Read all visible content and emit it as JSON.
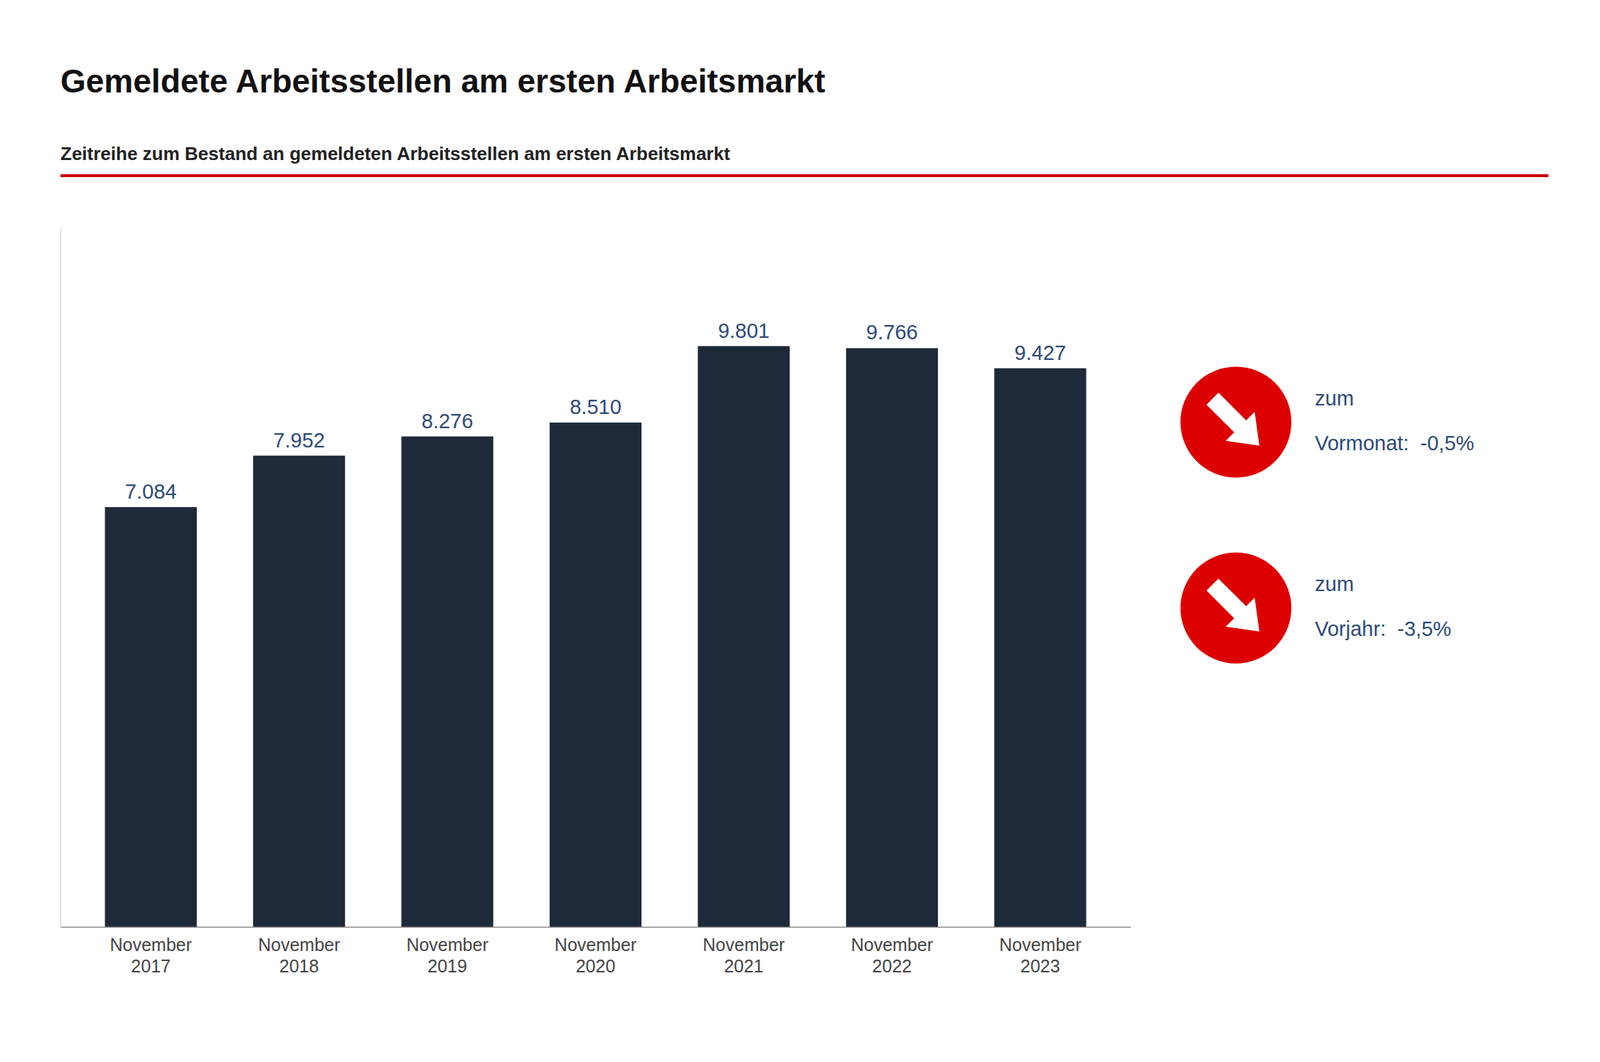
{
  "chart_data": {
    "type": "bar",
    "title": "Gemeldete Arbeitsstellen am ersten Arbeitsmarkt",
    "subtitle": "Zeitreihe zum Bestand an gemeldeten Arbeitsstellen am ersten Arbeitsmarkt",
    "categories": [
      "November\n2017",
      "November\n2018",
      "November\n2019",
      "November\n2020",
      "November\n2021",
      "November\n2022",
      "November\n2023"
    ],
    "values": [
      7084,
      7952,
      8276,
      8510,
      9801,
      9766,
      9427
    ],
    "value_labels": [
      "7.084",
      "7.952",
      "8.276",
      "8.510",
      "9.801",
      "9.766",
      "9.427"
    ],
    "data_labels": true,
    "color": "#1e2a3a",
    "ylim": [
      0,
      11800
    ],
    "tick_labels": "x",
    "grid": false,
    "annotations": [
      [
        "zum",
        "Vormonat:  -0,5%"
      ],
      [
        "zum",
        "Vorjahr:  -3,5%"
      ]
    ]
  }
}
